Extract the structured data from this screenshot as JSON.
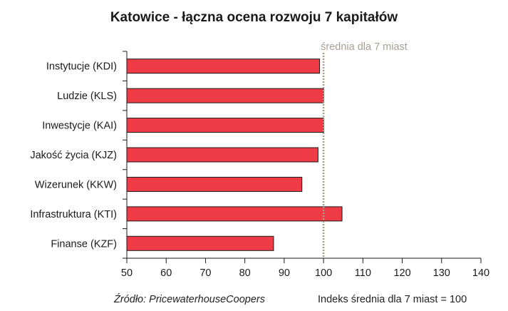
{
  "chart_data": {
    "type": "bar",
    "orientation": "horizontal",
    "title": "Katowice - łączna ocena rozwoju 7 kapitałów",
    "categories": [
      "Instytucje (KDI)",
      "Ludzie (KLS)",
      "Inwestycje (KAI)",
      "Jakość życia (KJZ)",
      "Wizerunek (KKW)",
      "Infrastruktura (KTI)",
      "Finanse (KZF)"
    ],
    "values": [
      99,
      100,
      100,
      98.6,
      94.5,
      104.7,
      87.3
    ],
    "xlim": [
      50,
      140
    ],
    "xticks": [
      50,
      60,
      70,
      80,
      90,
      100,
      110,
      120,
      130,
      140
    ],
    "reference_line": {
      "value": 100,
      "label": "średnia dla 7 miast",
      "color": "#a89f93"
    },
    "bar_color": "#ef3b45",
    "bar_edge_color": "#1a1a1a",
    "grid": false
  },
  "footer": {
    "source": "Źródło: PricewaterhouseCoopers",
    "index_note": "Indeks średnia dla 7 miast = 100"
  }
}
